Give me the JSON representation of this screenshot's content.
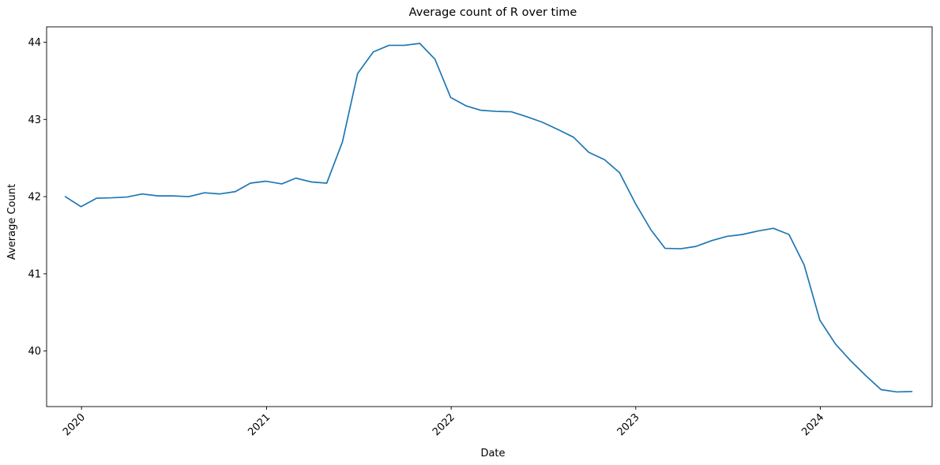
{
  "chart_data": {
    "type": "line",
    "title": "Average count of R over time",
    "xlabel": "Date",
    "ylabel": "Average Count",
    "x_ticks": [
      "2020",
      "2021",
      "2022",
      "2023",
      "2024"
    ],
    "y_ticks": [
      "40",
      "41",
      "42",
      "43",
      "44"
    ],
    "xlim": [
      "2019-10-24",
      "2024-08-09"
    ],
    "ylim": [
      39.28,
      44.2
    ],
    "grid": false,
    "legend": "none",
    "series": [
      {
        "color": "#1f77b4",
        "x": [
          "2019-11-30",
          "2019-12-31",
          "2020-01-31",
          "2020-02-29",
          "2020-03-31",
          "2020-04-30",
          "2020-05-31",
          "2020-06-30",
          "2020-07-31",
          "2020-08-31",
          "2020-09-30",
          "2020-10-31",
          "2020-11-30",
          "2020-12-31",
          "2021-01-31",
          "2021-02-28",
          "2021-03-31",
          "2021-04-30",
          "2021-05-31",
          "2021-06-30",
          "2021-07-31",
          "2021-08-31",
          "2021-09-30",
          "2021-10-31",
          "2021-11-30",
          "2021-12-31",
          "2022-01-31",
          "2022-02-28",
          "2022-03-31",
          "2022-04-30",
          "2022-05-31",
          "2022-06-30",
          "2022-07-31",
          "2022-08-31",
          "2022-09-30",
          "2022-10-31",
          "2022-11-30",
          "2022-12-31",
          "2023-01-31",
          "2023-02-28",
          "2023-03-31",
          "2023-04-30",
          "2023-05-31",
          "2023-06-30",
          "2023-07-31",
          "2023-08-31",
          "2023-09-30",
          "2023-10-31",
          "2023-11-30",
          "2023-12-31",
          "2024-01-31",
          "2024-02-29",
          "2024-03-31",
          "2024-04-30",
          "2024-05-31",
          "2024-06-30"
        ],
        "values": [
          42.0,
          41.87,
          41.98,
          41.985,
          41.995,
          42.035,
          42.01,
          42.01,
          42.0,
          42.05,
          42.035,
          42.065,
          42.175,
          42.2,
          42.165,
          42.24,
          42.19,
          42.175,
          42.71,
          43.595,
          43.875,
          43.96,
          43.96,
          43.985,
          43.78,
          43.285,
          43.175,
          43.12,
          43.105,
          43.1,
          43.035,
          42.965,
          42.87,
          42.77,
          42.575,
          42.48,
          42.31,
          41.915,
          41.57,
          41.33,
          41.325,
          41.355,
          41.43,
          41.485,
          41.51,
          41.555,
          41.59,
          41.51,
          41.115,
          40.4,
          40.09,
          39.88,
          39.68,
          39.5,
          39.47,
          39.475
        ]
      }
    ]
  }
}
